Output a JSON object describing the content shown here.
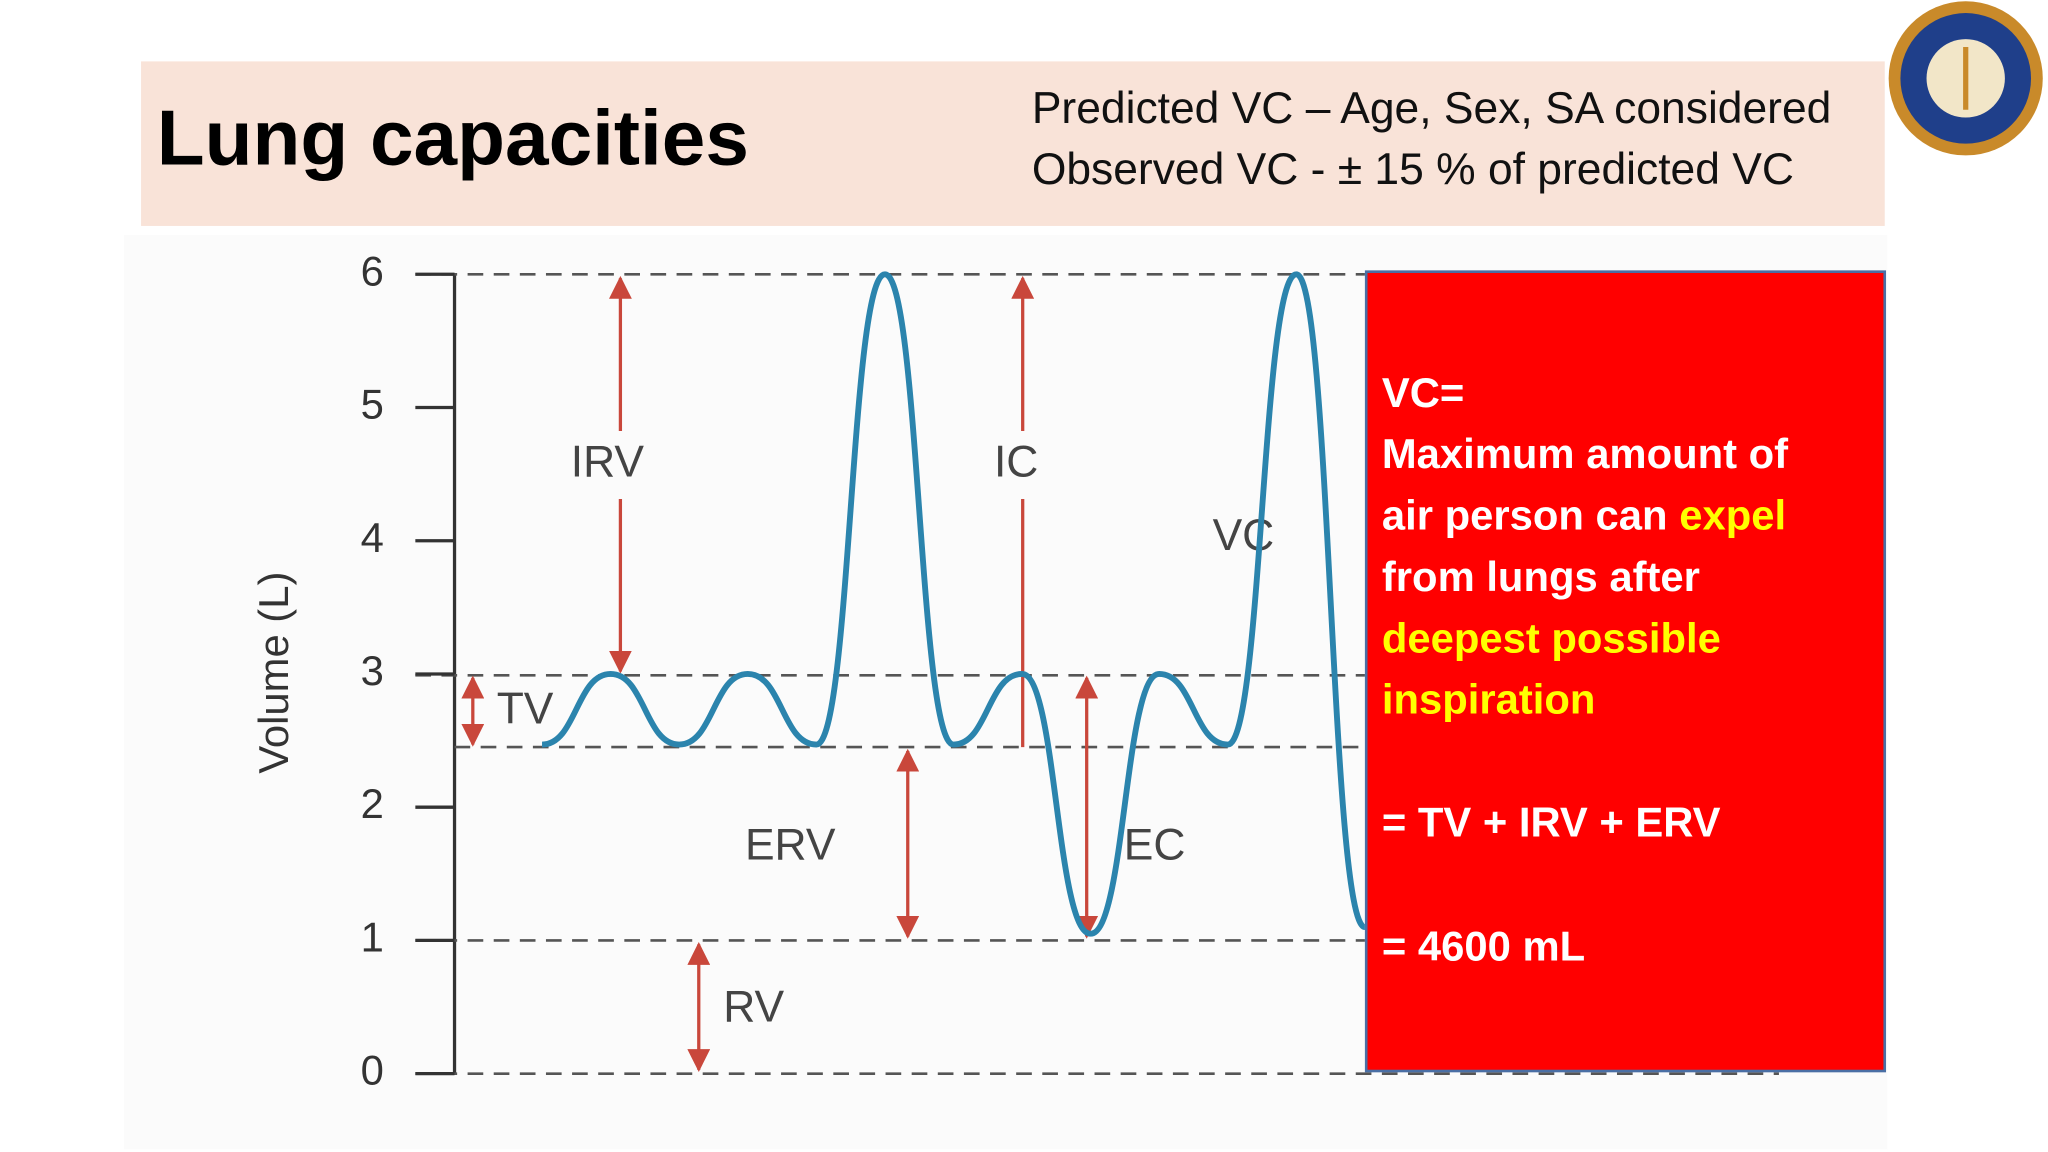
{
  "header": {
    "title": "Lung capacities",
    "subtitle": [
      "Predicted VC – Age, Sex, SA considered",
      "Observed VC - ± 15 % of predicted VC"
    ]
  },
  "chart_data": {
    "type": "line",
    "ylabel": "Volume (L)",
    "ylim": [
      0,
      6
    ],
    "yticks": [
      0,
      1,
      2,
      3,
      4,
      5,
      6
    ],
    "categories": [
      null,
      null,
      null,
      null,
      null,
      null,
      null,
      null,
      null,
      null,
      null,
      null,
      null
    ],
    "series": [
      {
        "color": "#2b84ad",
        "values": [
          2.47,
          3,
          2.47,
          3,
          2.47,
          6,
          2.47,
          3,
          1.05,
          3,
          2.47,
          6,
          1.1
        ]
      }
    ],
    "annotations": [
      "IRV",
      "IC",
      "TV",
      "ERV",
      "EC",
      "RV",
      "VC"
    ]
  },
  "note": {
    "lines": [
      [
        {
          "text": "VC=",
          "color": "#ffffff"
        }
      ],
      [
        {
          "text": "Maximum amount of",
          "color": "#ffffff"
        }
      ],
      [
        {
          "text": "air person can",
          "color": "#ffffff"
        },
        {
          "text": "expel",
          "color": "#ffff00"
        }
      ],
      [
        {
          "text": "from lungs after",
          "color": "#ffffff"
        }
      ],
      [
        {
          "text": "deepest  possible",
          "color": "#ffff00"
        }
      ],
      [
        {
          "text": "inspiration",
          "color": "#ffff00"
        }
      ],
      [
        {
          "text": "= TV + IRV + ERV",
          "color": "#ffffff"
        }
      ],
      [
        {
          "text": "= 4600 mL",
          "color": "#ffffff"
        }
      ]
    ]
  }
}
